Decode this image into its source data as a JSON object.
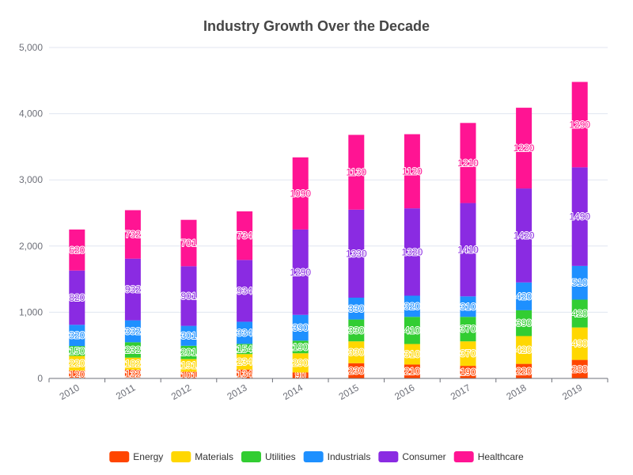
{
  "chart_data": {
    "type": "bar",
    "stacked": true,
    "title": "Industry Growth Over the Decade",
    "categories": [
      "2010",
      "2011",
      "2012",
      "2013",
      "2014",
      "2015",
      "2016",
      "2017",
      "2018",
      "2019"
    ],
    "series": [
      {
        "name": "Energy",
        "color": "#ff4500",
        "values": [
          120,
          132,
          101,
          134,
          90,
          230,
          210,
          190,
          220,
          280
        ]
      },
      {
        "name": "Materials",
        "color": "#ffd700",
        "values": [
          220,
          182,
          191,
          234,
          290,
          330,
          310,
          370,
          420,
          490
        ]
      },
      {
        "name": "Utilities",
        "color": "#32cd32",
        "values": [
          150,
          232,
          201,
          154,
          190,
          330,
          410,
          370,
          390,
          420
        ]
      },
      {
        "name": "Industrials",
        "color": "#1e90ff",
        "values": [
          320,
          332,
          301,
          334,
          390,
          330,
          320,
          310,
          420,
          510
        ]
      },
      {
        "name": "Consumer",
        "color": "#8a2be2",
        "values": [
          820,
          932,
          901,
          934,
          1290,
          1330,
          1320,
          1410,
          1420,
          1490
        ]
      },
      {
        "name": "Healthcare",
        "color": "#ff1493",
        "values": [
          620,
          732,
          701,
          734,
          1090,
          1130,
          1120,
          1210,
          1220,
          1290
        ]
      }
    ],
    "y_ticks": [
      "0",
      "1,000",
      "2,000",
      "3,000",
      "4,000",
      "5,000"
    ],
    "ylim": [
      0,
      5000
    ],
    "xlabel": "",
    "ylabel": "",
    "grid": true,
    "legend_position": "bottom"
  }
}
